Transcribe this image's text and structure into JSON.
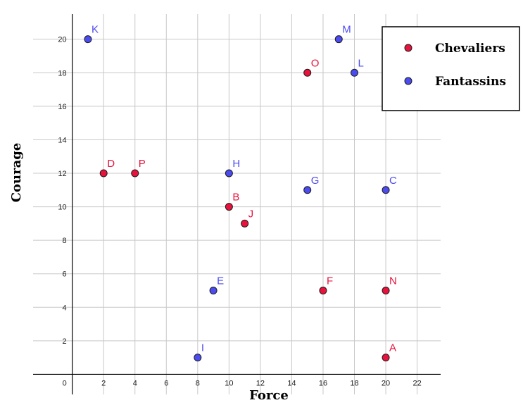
{
  "chart_data": {
    "type": "scatter",
    "xlabel": "Force",
    "ylabel": "Courage",
    "xlim": [
      -2.5,
      23.5
    ],
    "ylim": [
      -1.2,
      21.5
    ],
    "x_ticks": [
      2,
      4,
      6,
      8,
      10,
      12,
      14,
      16,
      18,
      20,
      22
    ],
    "y_ticks": [
      2,
      4,
      6,
      8,
      10,
      12,
      14,
      16,
      18,
      20
    ],
    "origin_label": "0",
    "grid": true,
    "legend_position": "top-right",
    "series": [
      {
        "name": "Chevaliers",
        "color": "#e8123c",
        "points": [
          {
            "label": "A",
            "x": 20,
            "y": 1
          },
          {
            "label": "B",
            "x": 10,
            "y": 10
          },
          {
            "label": "D",
            "x": 2,
            "y": 12
          },
          {
            "label": "F",
            "x": 16,
            "y": 5
          },
          {
            "label": "J",
            "x": 11,
            "y": 9
          },
          {
            "label": "N",
            "x": 20,
            "y": 5
          },
          {
            "label": "O",
            "x": 15,
            "y": 18
          },
          {
            "label": "P",
            "x": 4,
            "y": 12
          }
        ]
      },
      {
        "name": "Fantassins",
        "color": "#4b4bf0",
        "points": [
          {
            "label": "C",
            "x": 20,
            "y": 11
          },
          {
            "label": "E",
            "x": 9,
            "y": 5
          },
          {
            "label": "G",
            "x": 15,
            "y": 11
          },
          {
            "label": "H",
            "x": 10,
            "y": 12
          },
          {
            "label": "I",
            "x": 8,
            "y": 1
          },
          {
            "label": "K",
            "x": 1,
            "y": 20
          },
          {
            "label": "L",
            "x": 18,
            "y": 18
          },
          {
            "label": "M",
            "x": 17,
            "y": 20
          }
        ]
      }
    ]
  }
}
